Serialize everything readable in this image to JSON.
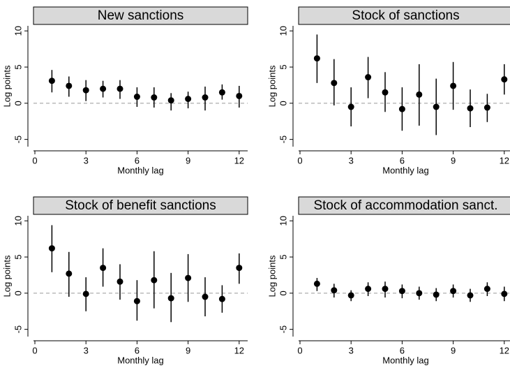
{
  "chart_data": [
    {
      "type": "errorbar",
      "title": "New sanctions",
      "xlabel": "Monthly lag",
      "ylabel": "Log points",
      "color": "#000000",
      "x": [
        1,
        2,
        3,
        4,
        5,
        6,
        7,
        8,
        9,
        10,
        11,
        12
      ],
      "values": [
        3.1,
        2.4,
        1.8,
        2.0,
        2.0,
        0.9,
        0.8,
        0.4,
        0.6,
        0.8,
        1.5,
        1.0
      ],
      "lower": [
        1.5,
        0.9,
        0.3,
        0.8,
        0.6,
        -0.5,
        -0.6,
        -1.0,
        -0.7,
        -1.0,
        0.5,
        -0.6
      ],
      "upper": [
        4.6,
        3.7,
        3.2,
        3.1,
        3.2,
        2.2,
        2.2,
        1.4,
        1.6,
        2.3,
        2.6,
        2.4
      ],
      "xlim": [
        0,
        12.5
      ],
      "ylim": [
        -6,
        10.7
      ],
      "xticks": [
        0,
        3,
        6,
        9,
        12
      ],
      "yticks": [
        -5,
        0,
        5,
        10
      ],
      "reference_line": 0
    },
    {
      "type": "errorbar",
      "title": "Stock of sanctions",
      "xlabel": "Monthly lag",
      "ylabel": "Log points",
      "color": "#000000",
      "x": [
        1,
        2,
        3,
        4,
        5,
        6,
        7,
        8,
        9,
        10,
        11,
        12
      ],
      "values": [
        6.2,
        2.8,
        -0.5,
        3.6,
        1.5,
        -0.8,
        1.2,
        -0.5,
        2.4,
        -0.7,
        -0.6,
        3.3
      ],
      "lower": [
        2.8,
        -0.3,
        -3.2,
        0.7,
        -1.2,
        -3.8,
        -3.1,
        -4.4,
        -0.9,
        -3.3,
        -2.6,
        1.2
      ],
      "upper": [
        9.5,
        6.1,
        2.2,
        6.4,
        4.3,
        2.2,
        5.4,
        3.4,
        5.7,
        1.9,
        1.3,
        5.4
      ],
      "xlim": [
        0,
        12.5
      ],
      "ylim": [
        -6,
        10.7
      ],
      "xticks": [
        0,
        3,
        6,
        9,
        12
      ],
      "yticks": [
        -5,
        0,
        5,
        10
      ],
      "reference_line": 0
    },
    {
      "type": "errorbar",
      "title": "Stock of benefit sanctions",
      "xlabel": "Monthly lag",
      "ylabel": "Log points",
      "color": "#000000",
      "x": [
        1,
        2,
        3,
        4,
        5,
        6,
        7,
        8,
        9,
        10,
        11,
        12
      ],
      "values": [
        6.2,
        2.7,
        -0.1,
        3.5,
        1.6,
        -1.1,
        1.8,
        -0.7,
        2.1,
        -0.5,
        -0.8,
        3.5
      ],
      "lower": [
        2.9,
        -0.5,
        -2.5,
        0.9,
        -0.9,
        -3.8,
        -2.1,
        -4.0,
        -1.2,
        -3.2,
        -2.7,
        1.3
      ],
      "upper": [
        9.4,
        5.7,
        2.2,
        6.2,
        4.0,
        1.8,
        5.8,
        2.8,
        5.4,
        2.2,
        1.1,
        5.5
      ],
      "xlim": [
        0,
        12.5
      ],
      "ylim": [
        -6,
        10.7
      ],
      "xticks": [
        0,
        3,
        6,
        9,
        12
      ],
      "yticks": [
        -5,
        0,
        5,
        10
      ],
      "reference_line": 0
    },
    {
      "type": "errorbar",
      "title": "Stock of accommodation sanct.",
      "xlabel": "Monthly lag",
      "ylabel": "Log points",
      "color": "#000000",
      "x": [
        1,
        2,
        3,
        4,
        5,
        6,
        7,
        8,
        9,
        10,
        11,
        12
      ],
      "values": [
        1.3,
        0.4,
        -0.3,
        0.6,
        0.6,
        0.3,
        0,
        -0.2,
        0.3,
        -0.3,
        0.6,
        -0.1
      ],
      "lower": [
        0.3,
        -0.6,
        -1.1,
        -0.4,
        -0.6,
        -0.7,
        -0.9,
        -1.1,
        -0.6,
        -1.2,
        -0.4,
        -1.1
      ],
      "upper": [
        2.1,
        1.3,
        0.4,
        1.5,
        1.6,
        1.2,
        0.9,
        0.7,
        1.2,
        0.6,
        1.5,
        0.9
      ],
      "xlim": [
        0,
        12.5
      ],
      "ylim": [
        -6,
        10.7
      ],
      "xticks": [
        0,
        3,
        6,
        9,
        12
      ],
      "yticks": [
        -5,
        0,
        5,
        10
      ],
      "reference_line": 0
    }
  ]
}
